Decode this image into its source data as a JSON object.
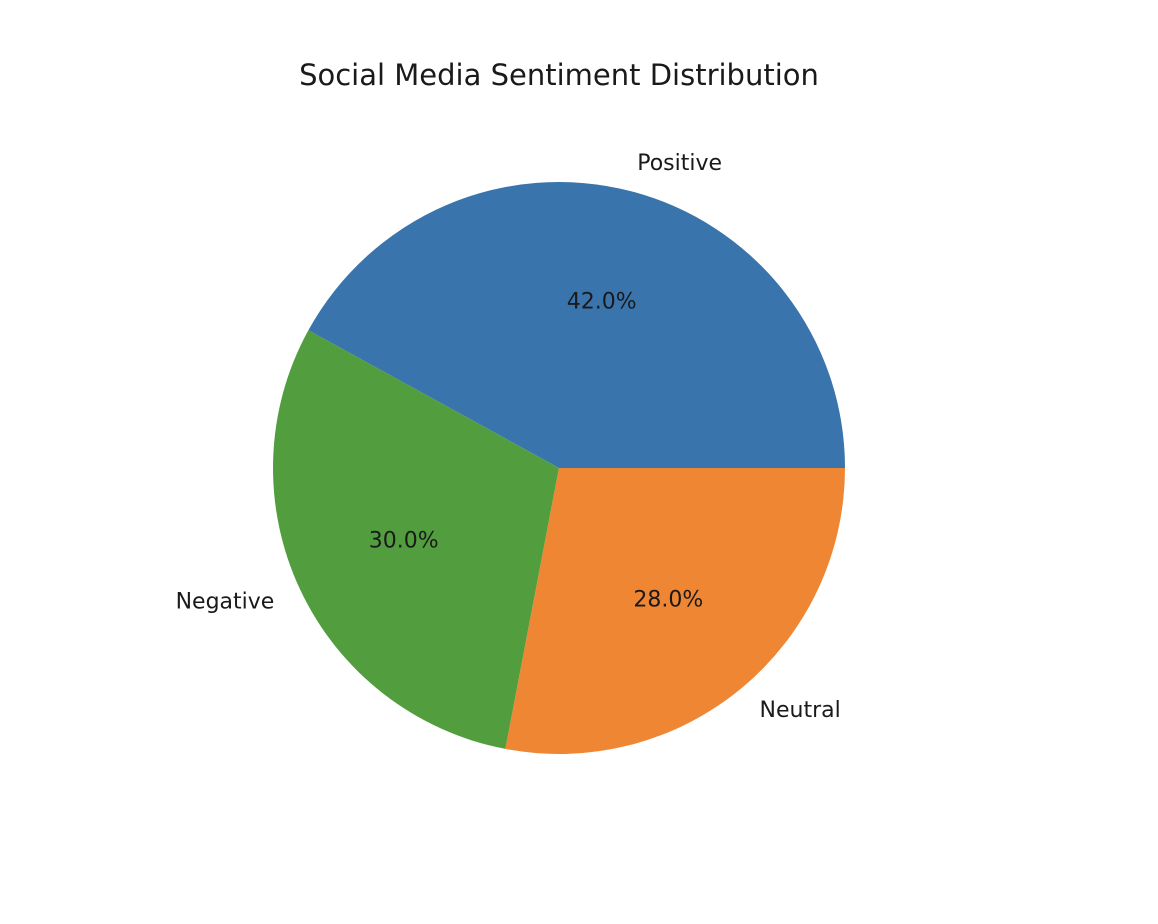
{
  "chart_data": {
    "type": "pie",
    "title": "Social Media Sentiment Distribution",
    "categories": [
      "Positive",
      "Negative",
      "Neutral"
    ],
    "values": [
      42.0,
      30.0,
      28.0
    ],
    "value_labels": [
      "42.0%",
      "30.0%",
      "28.0%"
    ],
    "colors": [
      "#3a74ac",
      "#529e3f",
      "#ee8634"
    ],
    "start_angle_deg": 0,
    "direction": "counterclockwise",
    "legend": "none"
  }
}
